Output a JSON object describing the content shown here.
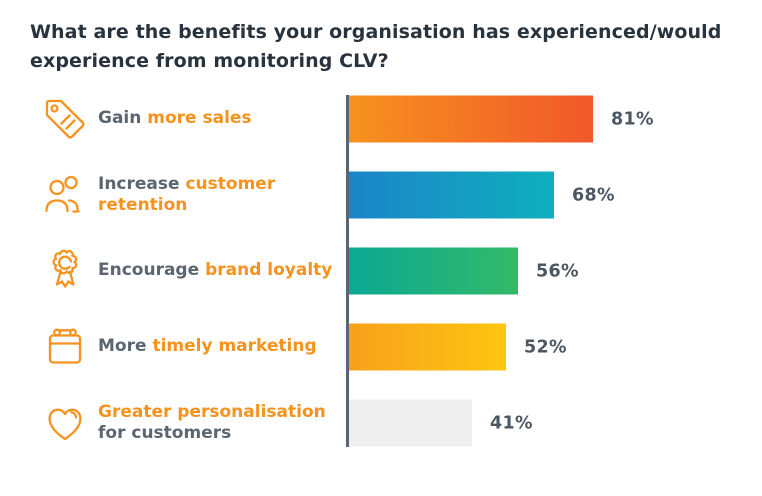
{
  "title": "What are the benefits your organisation has experienced/would experience from monitoring CLV?",
  "chart_data": {
    "type": "bar",
    "orientation": "horizontal",
    "title": "What are the benefits your organisation has experienced/would experience from monitoring CLV?",
    "xlabel": "",
    "ylabel": "",
    "unit": "%",
    "xlim": [
      0,
      100
    ],
    "grid": false,
    "legend": false,
    "categories": [
      "Gain more sales",
      "Increase customer retention",
      "Encourage brand loyalty",
      "More timely marketing",
      "Greater personalisation for customers"
    ],
    "values": [
      81,
      68,
      56,
      52,
      41
    ]
  },
  "colors": {
    "title_text": "#29333d",
    "label_gray": "#5c6670",
    "accent_orange": "#f6921e",
    "value_text": "#4c5763",
    "axis": "#5a6472"
  },
  "rows": [
    {
      "icon": "price-tag-icon",
      "label_plain": "Gain",
      "label_accent": "more sales",
      "value": 81,
      "value_label": "81%",
      "bar_start": "#f6921e",
      "bar_end": "#f1582a"
    },
    {
      "icon": "customers-people-icon",
      "label_plain": "Increase",
      "label_accent": "customer retention",
      "value": 68,
      "value_label": "68%",
      "bar_start": "#1b85c8",
      "bar_end": "#10afbe"
    },
    {
      "icon": "award-rosette-icon",
      "label_plain": "Encourage",
      "label_accent": "brand loyalty",
      "value": 56,
      "value_label": "56%",
      "bar_start": "#0ba894",
      "bar_end": "#33ba68"
    },
    {
      "icon": "calendar-icon",
      "label_plain": "More",
      "label_accent": "timely marketing",
      "value": 52,
      "value_label": "52%",
      "bar_start": "#f7a11b",
      "bar_end": "#fdc60f"
    },
    {
      "icon": "heart-icon",
      "label_plain": "for customers",
      "label_accent": "Greater personalisation",
      "value": 41,
      "value_label": "41%",
      "bar_start": "#efefef",
      "bar_end": "#efefef"
    }
  ]
}
